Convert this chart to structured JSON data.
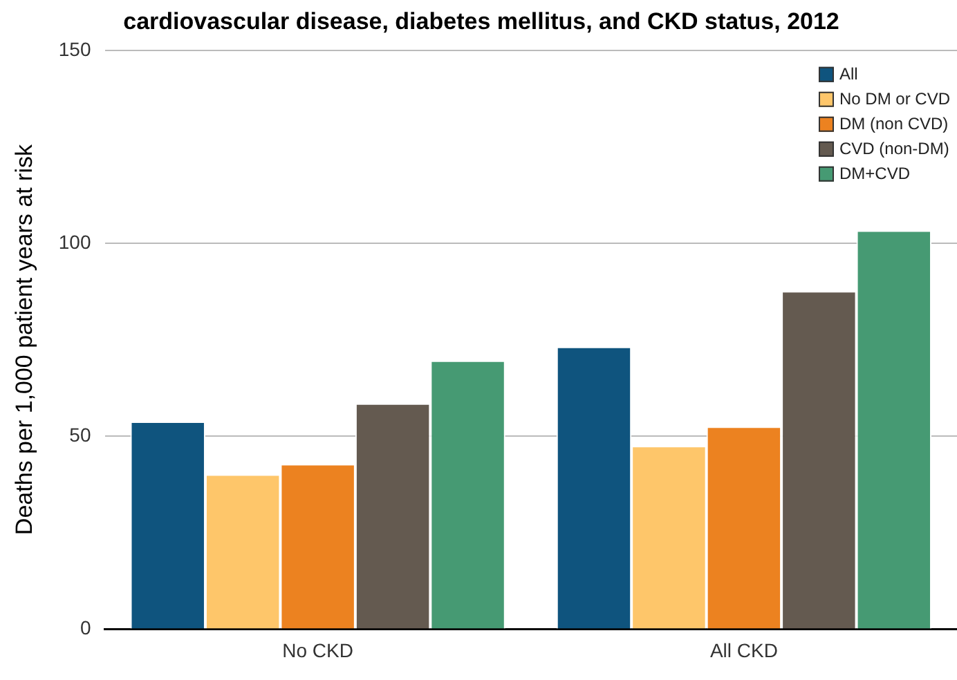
{
  "chart_data": {
    "type": "bar",
    "title": "cardiovascular disease, diabetes mellitus, and CKD status, 2012",
    "ylabel": "Deaths per 1,000 patient years at risk",
    "categories": [
      "No CKD",
      "All CKD"
    ],
    "series": [
      {
        "name": "All",
        "color": "#0f547e",
        "values": [
          53.8,
          73.2
        ]
      },
      {
        "name": "No DM or CVD",
        "color": "#fec66a",
        "values": [
          40.1,
          47.5
        ]
      },
      {
        "name": "DM (non CVD)",
        "color": "#ec8220",
        "values": [
          42.8,
          52.5
        ]
      },
      {
        "name": "CVD (non-DM)",
        "color": "#645a50",
        "values": [
          58.5,
          87.6
        ]
      },
      {
        "name": "DM+CVD",
        "color": "#469a73",
        "values": [
          69.6,
          103.3
        ]
      }
    ],
    "ylim": [
      0,
      150
    ],
    "yticks": [
      0,
      50,
      100,
      150
    ],
    "grid": "y",
    "legend": "top right"
  }
}
